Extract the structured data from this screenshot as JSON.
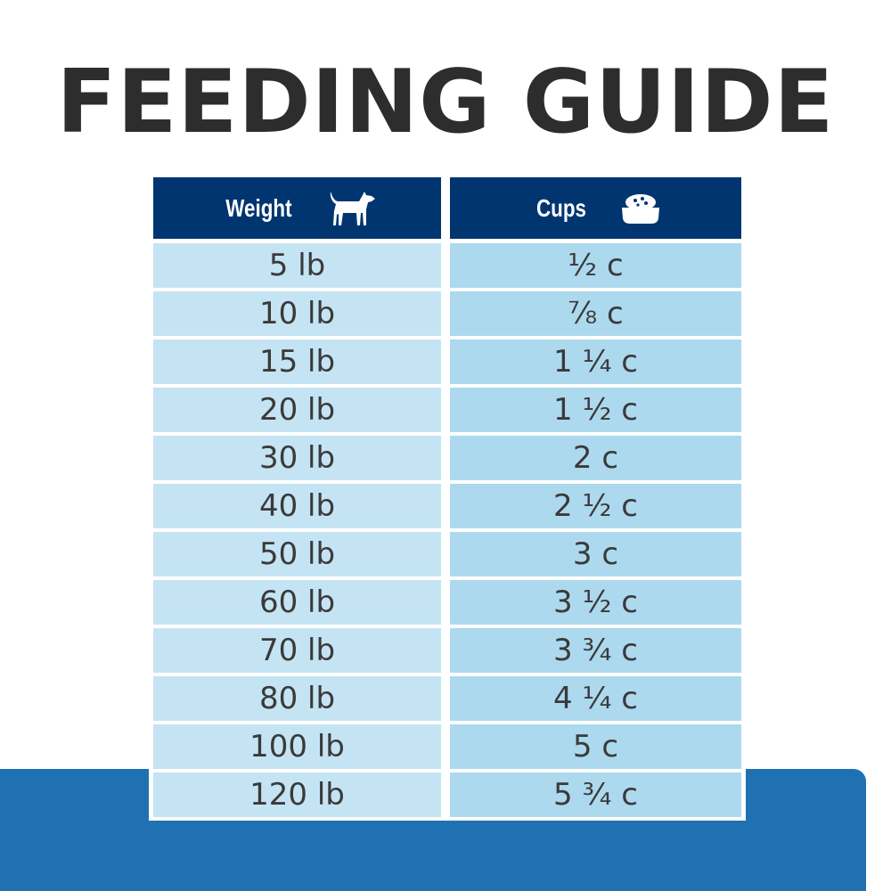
{
  "title": "FEEDING GUIDE",
  "colors": {
    "header": "#003570",
    "weight_cell": "#c5e4f3",
    "cups_cell": "#acd9ee",
    "band": "#2071b1",
    "title": "#2d2d2d"
  },
  "table": {
    "headers": [
      {
        "label": "Weight",
        "icon": "dog-icon"
      },
      {
        "label": "Cups",
        "icon": "food-bowl-icon"
      }
    ],
    "rows": [
      {
        "weight": "5 lb",
        "cups": "½ c"
      },
      {
        "weight": "10 lb",
        "cups": "⅞ c"
      },
      {
        "weight": "15 lb",
        "cups": "1 ¼ c"
      },
      {
        "weight": "20 lb",
        "cups": "1 ½ c"
      },
      {
        "weight": "30 lb",
        "cups": "2 c"
      },
      {
        "weight": "40 lb",
        "cups": "2 ½ c"
      },
      {
        "weight": "50 lb",
        "cups": "3 c"
      },
      {
        "weight": "60 lb",
        "cups": "3 ½ c"
      },
      {
        "weight": "70 lb",
        "cups": "3 ¾ c"
      },
      {
        "weight": "80 lb",
        "cups": "4 ¼ c"
      },
      {
        "weight": "100 lb",
        "cups": "5 c"
      },
      {
        "weight": "120 lb",
        "cups": "5 ¾ c"
      }
    ]
  }
}
